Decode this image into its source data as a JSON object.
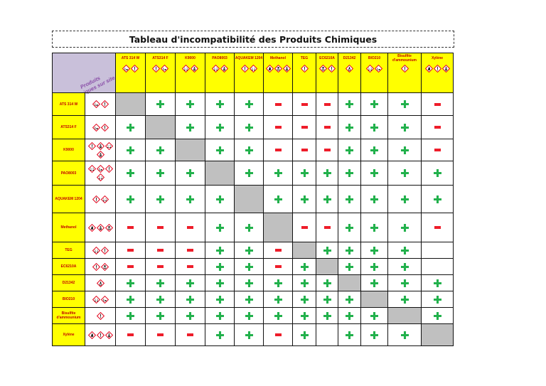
{
  "title": "Tableau d'incompatibilité des Produits Chimiques",
  "corner_label": "Produits Chimiques sur site",
  "columns": [
    {
      "label": "ATS 314 W",
      "icons": [
        "environment",
        "exclamation"
      ]
    },
    {
      "label": "ATS314 F",
      "icons": [
        "exclamation",
        "environment"
      ]
    },
    {
      "label": "K9000",
      "icons": [
        "corrosive",
        "health-hazard"
      ]
    },
    {
      "label": "PAO8003",
      "icons": [
        "corrosive",
        "health-hazard"
      ]
    },
    {
      "label": "AQUAKEM 1204",
      "icons": [
        "exclamation",
        "corrosive"
      ]
    },
    {
      "label": "Methanol",
      "icons": [
        "flammable",
        "toxic",
        "health-hazard"
      ]
    },
    {
      "label": "TEG",
      "icons": [
        "exclamation"
      ]
    },
    {
      "label": "EC6210A",
      "icons": [
        "toxic",
        "exclamation"
      ]
    },
    {
      "label": "D21342",
      "icons": [
        "oxidizer"
      ]
    },
    {
      "label": "BIO210",
      "icons": [
        "corrosive",
        "environment"
      ]
    },
    {
      "label": "Bisulfite d'ammounium",
      "icons": [
        "exclamation"
      ]
    },
    {
      "label": "Xylène",
      "icons": [
        "flammable",
        "exclamation",
        "health-hazard"
      ]
    }
  ],
  "rows": [
    {
      "label": "ATS 314 W",
      "icons": [
        "environment",
        "exclamation"
      ],
      "cells": [
        "grey",
        "+",
        "+",
        "+",
        "+",
        "-",
        "-",
        "-",
        "+",
        "+",
        "+",
        "-"
      ]
    },
    {
      "label": "ATS314 F",
      "icons": [
        "environment",
        "exclamation"
      ],
      "cells": [
        "+",
        "grey",
        "+",
        "+",
        "+",
        "-",
        "-",
        "-",
        "+",
        "+",
        "+",
        "-"
      ]
    },
    {
      "label": "K9000",
      "icons": [
        "exclamation",
        "health-hazard",
        "corrosive",
        "health-hazard"
      ],
      "cells": [
        "+",
        "+",
        "grey",
        "+",
        "+",
        "-",
        "-",
        "-",
        "+",
        "+",
        "+",
        "-"
      ]
    },
    {
      "label": "PAO8003",
      "icons": [
        "corrosive",
        "environment",
        "exclamation",
        "corrosive"
      ],
      "cells": [
        "+",
        "+",
        "+",
        "grey",
        "+",
        "+",
        "+",
        "+",
        "+",
        "+",
        "+",
        "+"
      ]
    },
    {
      "label": "AQUAKEM 1204",
      "icons": [
        "exclamation",
        "corrosive"
      ],
      "cells": [
        "+",
        "+",
        "+",
        "+",
        "grey",
        "+",
        "+",
        "+",
        "+",
        "+",
        "+",
        "+"
      ]
    },
    {
      "label": "Methanol",
      "icons": [
        "flammable",
        "health-hazard",
        "toxic"
      ],
      "cells": [
        "-",
        "-",
        "-",
        "+",
        "+",
        "grey",
        "-",
        "-",
        "+",
        "+",
        "+",
        "-"
      ]
    },
    {
      "label": "TEG",
      "icons": [
        "corrosive",
        "exclamation"
      ],
      "cells": [
        "-",
        "-",
        "-",
        "+",
        "+",
        "-",
        "grey",
        "+",
        "+",
        "+",
        "+",
        ""
      ]
    },
    {
      "label": "EC6210A",
      "icons": [
        "exclamation",
        "toxic"
      ],
      "cells": [
        "-",
        "-",
        "-",
        "+",
        "+",
        "-",
        "+",
        "grey",
        "+",
        "+",
        "+",
        ""
      ]
    },
    {
      "label": "D21342",
      "icons": [
        "oxidizer"
      ],
      "cells": [
        "+",
        "+",
        "+",
        "+",
        "+",
        "+",
        "+",
        "+",
        "grey",
        "+",
        "+",
        "+"
      ]
    },
    {
      "label": "BIO210",
      "icons": [
        "corrosive",
        "environment"
      ],
      "cells": [
        "+",
        "+",
        "+",
        "+",
        "+",
        "+",
        "+",
        "+",
        "+",
        "grey",
        "+",
        "+"
      ]
    },
    {
      "label": "Bisulfite d'ammounium",
      "icons": [
        "exclamation"
      ],
      "cells": [
        "+",
        "+",
        "+",
        "+",
        "+",
        "+",
        "+",
        "+",
        "+",
        "+",
        "grey",
        "+"
      ]
    },
    {
      "label": "Xylène",
      "icons": [
        "flammable",
        "exclamation",
        "health-hazard"
      ],
      "cells": [
        "-",
        "-",
        "-",
        "+",
        "+",
        "-",
        "+",
        "",
        "+",
        "+",
        "+",
        "grey"
      ]
    }
  ],
  "colors": {
    "plus": "#22b14c",
    "minus": "#ee1d2a",
    "grey": "#c0c0c0",
    "header": "#ffff00",
    "corner": "#c9c0da",
    "label": "#c00000"
  }
}
